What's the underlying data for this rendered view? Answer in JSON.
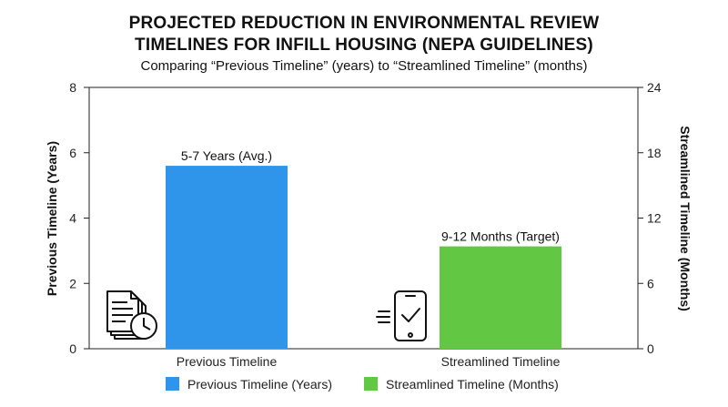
{
  "chart_data": {
    "type": "bar",
    "title_line1": "PROJECTED REDUCTION IN ENVIRONMENTAL REVIEW",
    "title_line2": "TIMELINES FOR INFILL HOUSING (NEPA GUIDELINES)",
    "subtitle": "Comparing “Previous Timeline” (years) to “Streamlined Timeline” (months)",
    "categories": [
      "Previous Timeline",
      "Streamlined Timeline"
    ],
    "series": [
      {
        "name": "Previous Timeline (Years)",
        "axis": "left",
        "values": [
          5.6,
          null
        ],
        "color": "#2f95ea",
        "data_label": "5-7 Years (Avg.)"
      },
      {
        "name": "Streamlined Timeline (Months)",
        "axis": "right",
        "values": [
          null,
          9.4
        ],
        "color": "#62c844",
        "data_label": "9-12 Months (Target)"
      }
    ],
    "ylabel_left": "Previous Timeline (Years)",
    "ylabel_right": "Streamlined Timeline (Months)",
    "ylim_left": [
      0,
      8
    ],
    "ylim_right": [
      0,
      24
    ],
    "yticks_left": [
      "0",
      "2",
      "4",
      "6",
      "8"
    ],
    "yticks_right": [
      "0",
      "6",
      "12",
      "18",
      "24"
    ],
    "grid": false,
    "legend_position": "bottom",
    "icons": [
      "document-clock-icon",
      "tablet-checkmark-icon"
    ]
  }
}
